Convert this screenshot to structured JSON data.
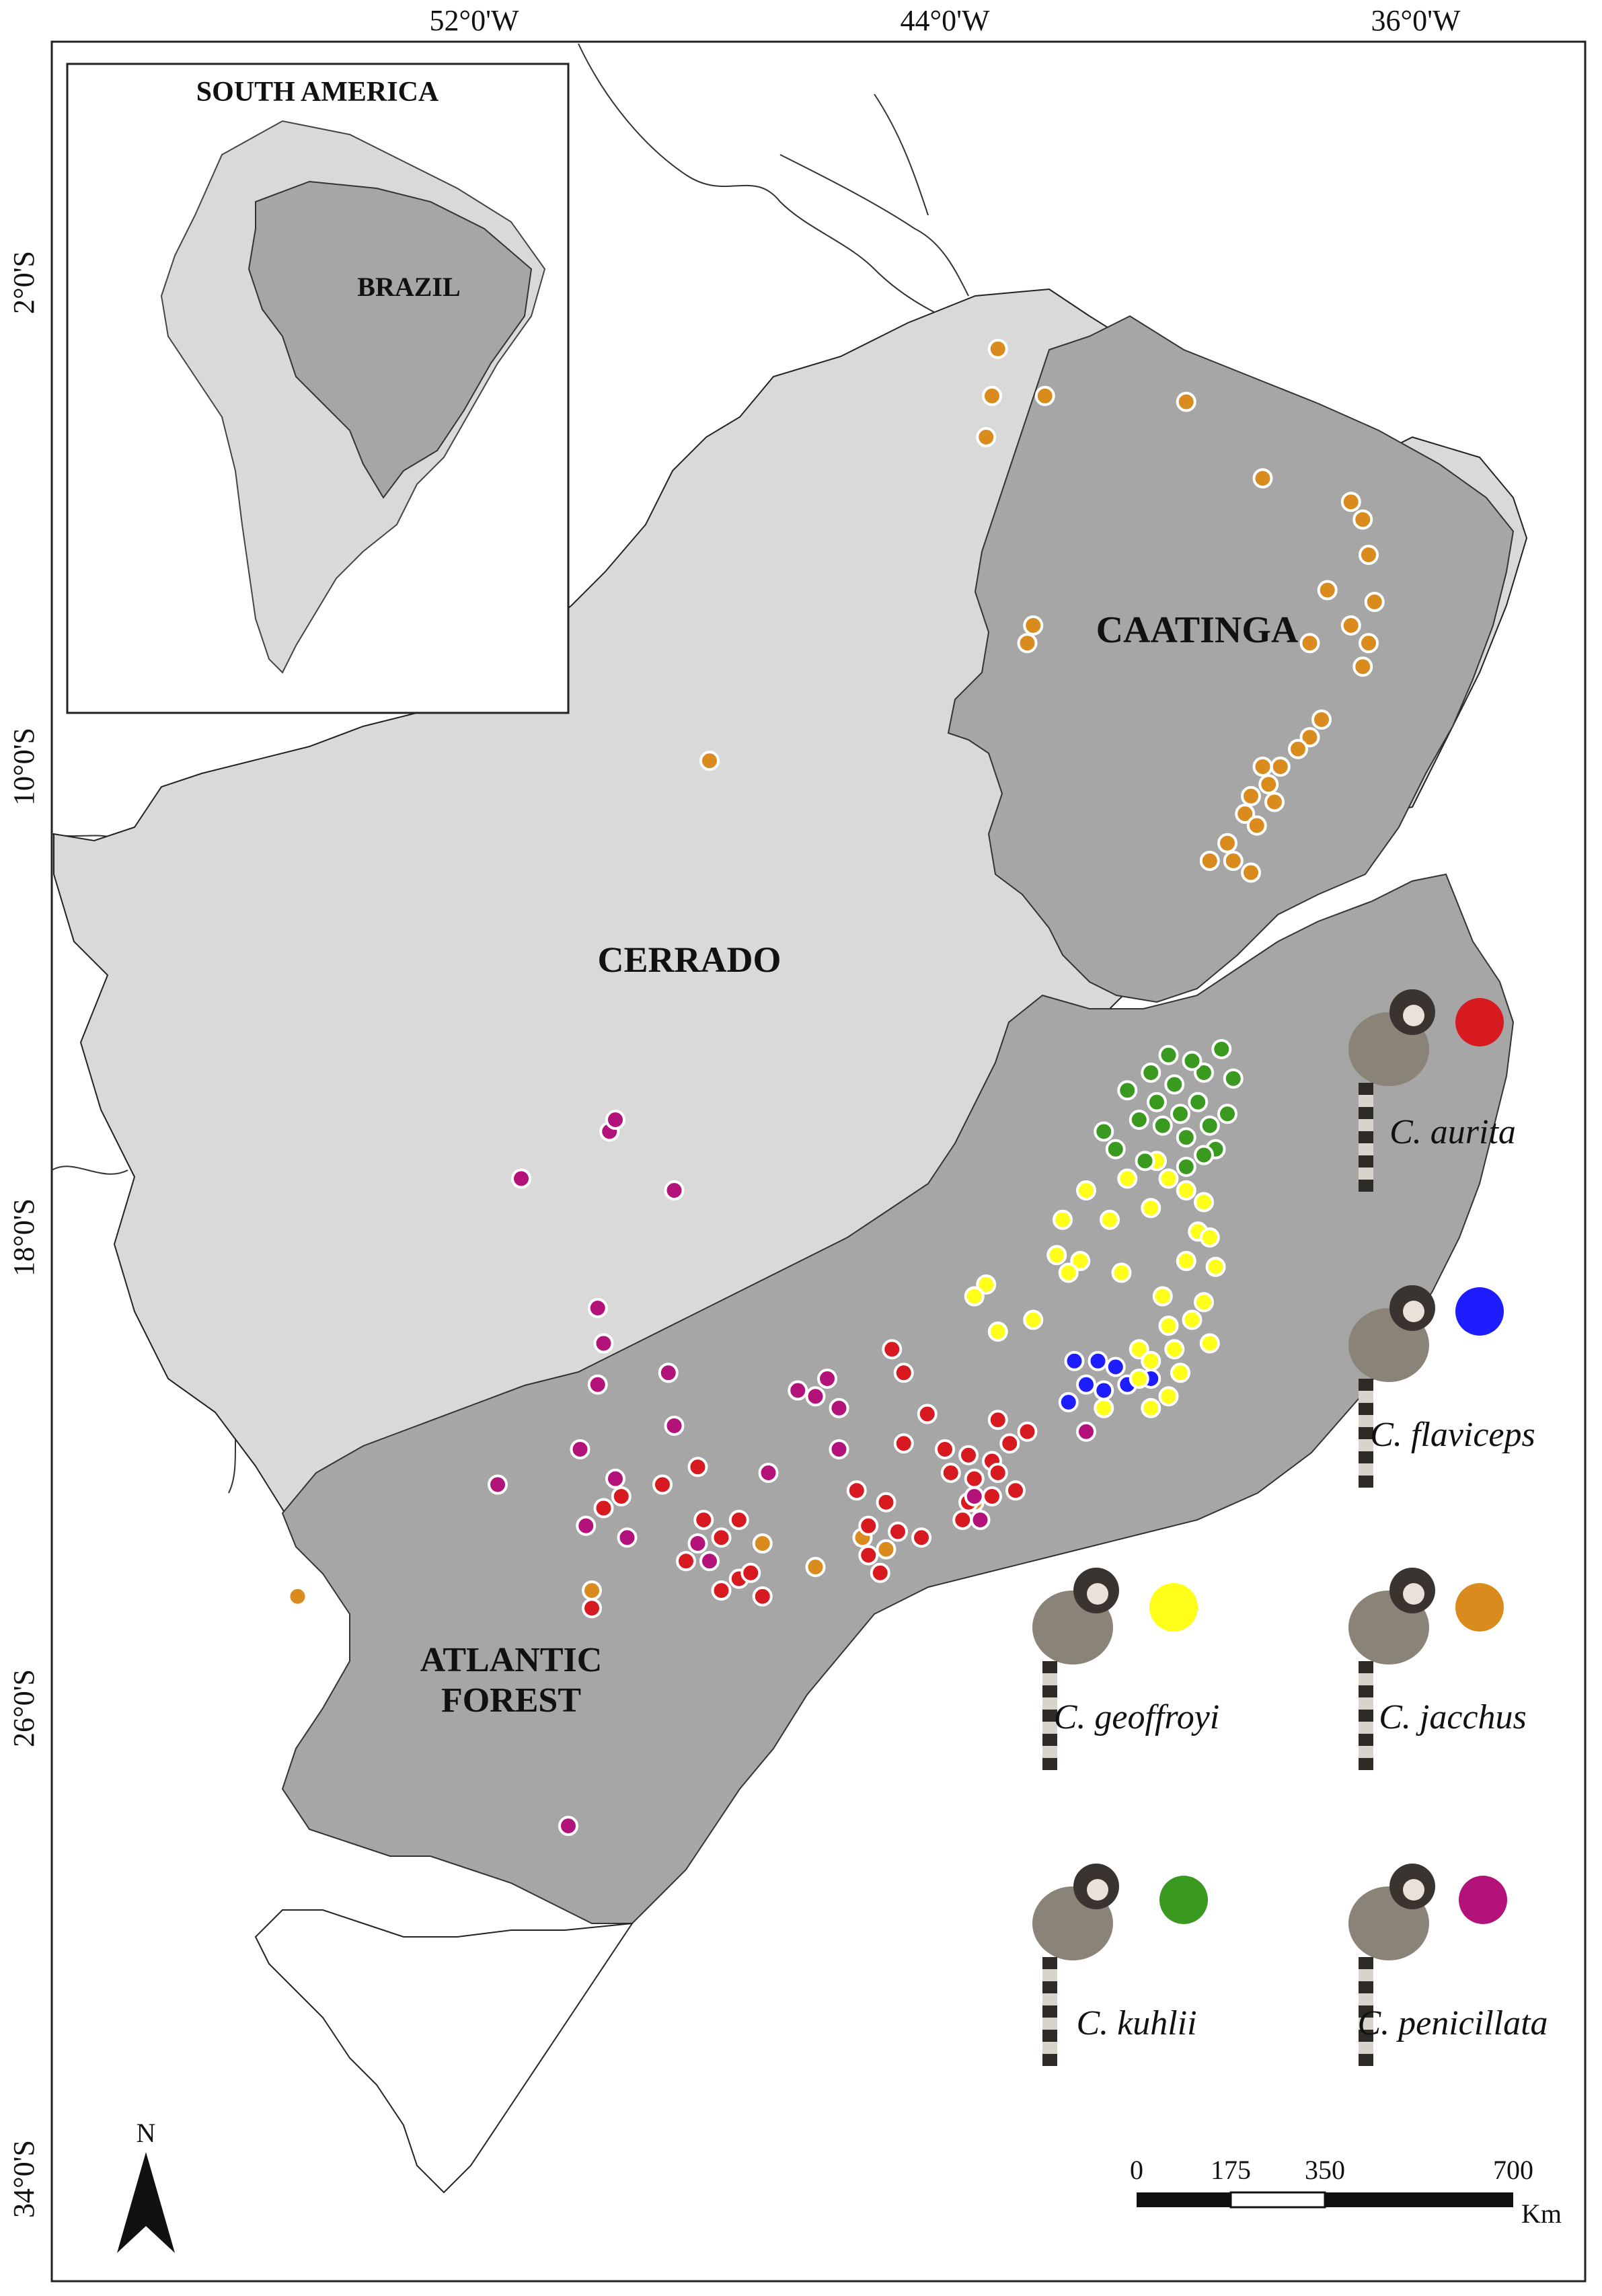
{
  "graticule": {
    "lon_labels": [
      "52°0'W",
      "44°0'W",
      "36°0'W"
    ],
    "lat_labels": [
      "2°0'S",
      "10°0'S",
      "18°0'S",
      "26°0'S",
      "34°0'S"
    ]
  },
  "inset": {
    "title": "SOUTH AMERICA",
    "country": "BRAZIL"
  },
  "biomes": {
    "caatinga": "CAATINGA",
    "cerrado": "CERRADO",
    "atlantic_line1": "ATLANTIC",
    "atlantic_line2": "FOREST"
  },
  "colors": {
    "outside": "#ffffff",
    "cerrado": "#d9d9d9",
    "caatinga_atlantic": "#a6a6a6",
    "aurita": "#d71920",
    "flaviceps": "#1d1dff",
    "geoffroyi": "#ffff1a",
    "jacchus": "#d98b1e",
    "kuhlii": "#3a9a1f",
    "penicillata": "#b3127a"
  },
  "legend": [
    {
      "key": "aurita",
      "label": "C. aurita",
      "icon": "marmoset-aurita"
    },
    {
      "key": "flaviceps",
      "label": "C. flaviceps",
      "icon": "marmoset-flaviceps"
    },
    {
      "key": "geoffroyi",
      "label": "C. geoffroyi",
      "icon": "marmoset-geoffroyi"
    },
    {
      "key": "jacchus",
      "label": "C. jacchus",
      "icon": "marmoset-jacchus"
    },
    {
      "key": "kuhlii",
      "label": "C. kuhlii",
      "icon": "marmoset-kuhlii"
    },
    {
      "key": "penicillata",
      "label": "C. penicillata",
      "icon": "marmoset-penicillata"
    }
  ],
  "north_arrow": {
    "label": "N"
  },
  "scale_bar": {
    "ticks": [
      "0",
      "175",
      "350",
      "700"
    ],
    "unit": "Km"
  },
  "occurrences": {
    "jacchus": [
      [
        -43.1,
        -2.9
      ],
      [
        -42.3,
        -3.7
      ],
      [
        -39.9,
        -3.8
      ],
      [
        -38.6,
        -5.1
      ],
      [
        -37.1,
        -5.5
      ],
      [
        -36.9,
        -5.8
      ],
      [
        -36.8,
        -6.4
      ],
      [
        -37.5,
        -7.0
      ],
      [
        -36.7,
        -7.2
      ],
      [
        -36.8,
        -7.9
      ],
      [
        -37.1,
        -7.6
      ],
      [
        -36.9,
        -8.3
      ],
      [
        -37.8,
        -7.9
      ],
      [
        -42.5,
        -7.6
      ],
      [
        -42.6,
        -7.9
      ],
      [
        -48.0,
        -9.9
      ],
      [
        -37.6,
        -9.2
      ],
      [
        -37.8,
        -9.5
      ],
      [
        -38.0,
        -9.7
      ],
      [
        -38.6,
        -10.0
      ],
      [
        -38.3,
        -10.0
      ],
      [
        -38.5,
        -10.3
      ],
      [
        -38.8,
        -10.5
      ],
      [
        -38.9,
        -10.8
      ],
      [
        -38.4,
        -10.6
      ],
      [
        -39.2,
        -11.3
      ],
      [
        -39.5,
        -11.6
      ],
      [
        -38.8,
        -11.8
      ],
      [
        -39.1,
        -11.6
      ],
      [
        -38.7,
        -11.0
      ],
      [
        -55.0,
        -24.1
      ],
      [
        -50.0,
        -24.0
      ],
      [
        -45.0,
        -23.3
      ],
      [
        -46.2,
        -23.6
      ],
      [
        -47.1,
        -23.2
      ],
      [
        -45.4,
        -23.1
      ],
      [
        -43.5,
        -22.5
      ],
      [
        -43.2,
        -3.7
      ],
      [
        -43.3,
        -4.4
      ]
    ],
    "aurita": [
      [
        -44.9,
        -19.9
      ],
      [
        -44.7,
        -20.3
      ],
      [
        -44.7,
        -21.5
      ],
      [
        -44.3,
        -21.0
      ],
      [
        -43.2,
        -21.8
      ],
      [
        -43.5,
        -22.1
      ],
      [
        -43.6,
        -22.5
      ],
      [
        -43.2,
        -22.4
      ],
      [
        -42.8,
        -22.3
      ],
      [
        -43.9,
        -22.0
      ],
      [
        -42.6,
        -21.3
      ],
      [
        -43.1,
        -21.1
      ],
      [
        -44.0,
        -21.6
      ],
      [
        -45.0,
        -22.5
      ],
      [
        -45.5,
        -22.3
      ],
      [
        -44.8,
        -23.0
      ],
      [
        -44.4,
        -23.1
      ],
      [
        -45.3,
        -23.4
      ],
      [
        -45.1,
        -23.7
      ],
      [
        -47.5,
        -22.8
      ],
      [
        -47.8,
        -23.1
      ],
      [
        -48.1,
        -22.8
      ],
      [
        -48.4,
        -23.5
      ],
      [
        -47.5,
        -23.8
      ],
      [
        -47.8,
        -24.0
      ],
      [
        -47.3,
        -23.7
      ],
      [
        -47.1,
        -24.1
      ],
      [
        -48.2,
        -21.9
      ],
      [
        -49.8,
        -22.6
      ],
      [
        -49.5,
        -22.4
      ],
      [
        -50.0,
        -24.3
      ],
      [
        -48.8,
        -22.2
      ],
      [
        -45.3,
        -22.9
      ],
      [
        -43.6,
        -21.7
      ],
      [
        -42.9,
        -21.5
      ],
      [
        -43.1,
        -22.0
      ],
      [
        -43.7,
        -22.8
      ]
    ],
    "flaviceps": [
      [
        -41.8,
        -20.1
      ],
      [
        -41.6,
        -20.5
      ],
      [
        -41.4,
        -20.1
      ],
      [
        -41.9,
        -20.8
      ],
      [
        -41.3,
        -20.6
      ],
      [
        -41.1,
        -20.2
      ],
      [
        -40.9,
        -20.5
      ],
      [
        -40.5,
        -20.4
      ]
    ],
    "geoffroyi": [
      [
        -40.4,
        -16.7
      ],
      [
        -40.2,
        -17.0
      ],
      [
        -39.9,
        -17.2
      ],
      [
        -41.6,
        -17.2
      ],
      [
        -41.2,
        -17.7
      ],
      [
        -41.7,
        -18.4
      ],
      [
        -41.9,
        -18.6
      ],
      [
        -42.1,
        -18.3
      ],
      [
        -43.3,
        -18.8
      ],
      [
        -43.5,
        -19.0
      ],
      [
        -42.5,
        -19.4
      ],
      [
        -40.5,
        -17.5
      ],
      [
        -39.9,
        -18.4
      ],
      [
        -40.3,
        -19.0
      ],
      [
        -39.8,
        -19.4
      ],
      [
        -39.5,
        -19.8
      ],
      [
        -40.0,
        -20.3
      ],
      [
        -40.2,
        -20.7
      ],
      [
        -40.5,
        -20.9
      ],
      [
        -40.7,
        -19.9
      ],
      [
        -40.2,
        -19.5
      ],
      [
        -39.7,
        -17.9
      ],
      [
        -40.9,
        -17.0
      ],
      [
        -42.0,
        -17.7
      ],
      [
        -43.1,
        -19.6
      ],
      [
        -41.3,
        -20.9
      ],
      [
        -39.6,
        -17.4
      ],
      [
        -41.0,
        -18.6
      ],
      [
        -39.5,
        -18.0
      ],
      [
        -39.4,
        -18.5
      ],
      [
        -39.6,
        -19.1
      ],
      [
        -40.1,
        -19.9
      ],
      [
        -40.5,
        -20.1
      ],
      [
        -40.7,
        -20.4
      ]
    ],
    "kuhlii": [
      [
        -39.6,
        -15.2
      ],
      [
        -40.1,
        -15.4
      ],
      [
        -40.4,
        -15.7
      ],
      [
        -40.7,
        -16.0
      ],
      [
        -40.9,
        -15.5
      ],
      [
        -40.3,
        -16.1
      ],
      [
        -39.9,
        -16.3
      ],
      [
        -39.5,
        -16.1
      ],
      [
        -39.7,
        -15.7
      ],
      [
        -40.0,
        -15.9
      ],
      [
        -40.5,
        -15.2
      ],
      [
        -39.3,
        -14.8
      ],
      [
        -39.1,
        -15.3
      ],
      [
        -39.2,
        -15.9
      ],
      [
        -39.4,
        -16.5
      ],
      [
        -39.9,
        -16.8
      ],
      [
        -40.6,
        -16.7
      ],
      [
        -41.1,
        -16.5
      ],
      [
        -41.3,
        -16.2
      ],
      [
        -39.8,
        -15.0
      ],
      [
        -40.2,
        -14.9
      ],
      [
        -39.6,
        -16.6
      ]
    ],
    "penicillata": [
      [
        -49.7,
        -16.2
      ],
      [
        -49.6,
        -16.0
      ],
      [
        -51.2,
        -17.0
      ],
      [
        -48.6,
        -17.2
      ],
      [
        -49.9,
        -19.2
      ],
      [
        -49.8,
        -19.8
      ],
      [
        -49.9,
        -20.5
      ],
      [
        -50.2,
        -21.6
      ],
      [
        -49.6,
        -22.1
      ],
      [
        -48.7,
        -20.3
      ],
      [
        -48.6,
        -21.2
      ],
      [
        -46.2,
        -20.7
      ],
      [
        -47.0,
        -22.0
      ],
      [
        -45.8,
        -21.6
      ],
      [
        -43.5,
        -22.4
      ],
      [
        -41.6,
        -21.3
      ],
      [
        -43.4,
        -22.8
      ],
      [
        -45.8,
        -20.9
      ],
      [
        -46.5,
        -20.6
      ],
      [
        -46.0,
        -20.4
      ],
      [
        -48.2,
        -23.2
      ],
      [
        -48.0,
        -23.5
      ],
      [
        -51.6,
        -22.2
      ],
      [
        -49.4,
        -23.1
      ],
      [
        -50.4,
        -28.0
      ],
      [
        -50.1,
        -22.9
      ]
    ]
  }
}
